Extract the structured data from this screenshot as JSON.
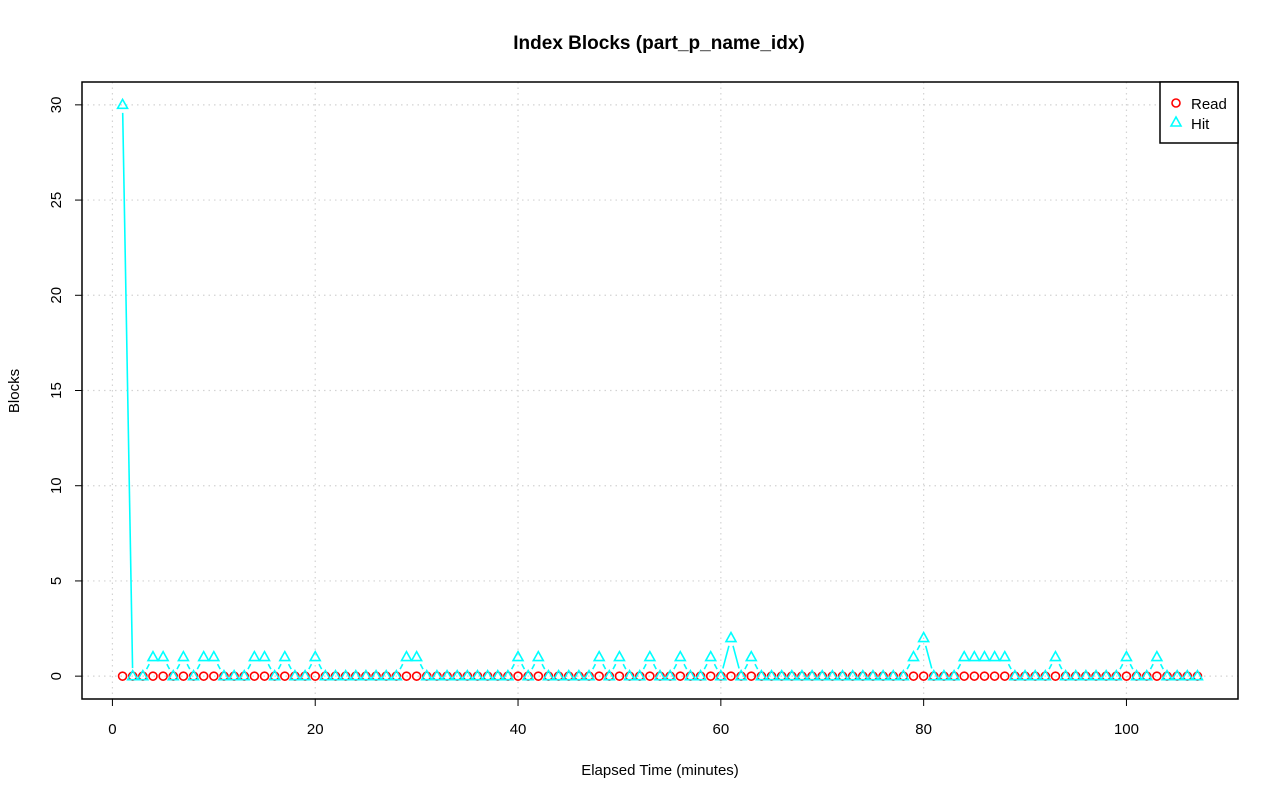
{
  "chart_data": {
    "type": "line",
    "title": "Index Blocks (part_p_name_idx)",
    "xlabel": "Elapsed Time (minutes)",
    "ylabel": "Blocks",
    "xlim": [
      -3,
      111
    ],
    "ylim": [
      -1.2,
      31.2
    ],
    "xticks": [
      0,
      20,
      40,
      60,
      80,
      100
    ],
    "yticks": [
      0,
      5,
      10,
      15,
      20,
      25,
      30
    ],
    "grid": true,
    "legend_position": "top-right",
    "x": [
      1,
      2,
      3,
      4,
      5,
      6,
      7,
      8,
      9,
      10,
      11,
      12,
      13,
      14,
      15,
      16,
      17,
      18,
      19,
      20,
      21,
      22,
      23,
      24,
      25,
      26,
      27,
      28,
      29,
      30,
      31,
      32,
      33,
      34,
      35,
      36,
      37,
      38,
      39,
      40,
      41,
      42,
      43,
      44,
      45,
      46,
      47,
      48,
      49,
      50,
      51,
      52,
      53,
      54,
      55,
      56,
      57,
      58,
      59,
      60,
      61,
      62,
      63,
      64,
      65,
      66,
      67,
      68,
      69,
      70,
      71,
      72,
      73,
      74,
      75,
      76,
      77,
      78,
      79,
      80,
      81,
      82,
      83,
      84,
      85,
      86,
      87,
      88,
      89,
      90,
      91,
      92,
      93,
      94,
      95,
      96,
      97,
      98,
      99,
      100,
      101,
      102,
      103,
      104,
      105,
      106,
      107
    ],
    "series": [
      {
        "name": "Read",
        "color": "#ff0000",
        "marker": "circle",
        "values": [
          0,
          0,
          0,
          0,
          0,
          0,
          0,
          0,
          0,
          0,
          0,
          0,
          0,
          0,
          0,
          0,
          0,
          0,
          0,
          0,
          0,
          0,
          0,
          0,
          0,
          0,
          0,
          0,
          0,
          0,
          0,
          0,
          0,
          0,
          0,
          0,
          0,
          0,
          0,
          0,
          0,
          0,
          0,
          0,
          0,
          0,
          0,
          0,
          0,
          0,
          0,
          0,
          0,
          0,
          0,
          0,
          0,
          0,
          0,
          0,
          0,
          0,
          0,
          0,
          0,
          0,
          0,
          0,
          0,
          0,
          0,
          0,
          0,
          0,
          0,
          0,
          0,
          0,
          0,
          0,
          0,
          0,
          0,
          0,
          0,
          0,
          0,
          0,
          0,
          0,
          0,
          0,
          0,
          0,
          0,
          0,
          0,
          0,
          0,
          0,
          0,
          0,
          0,
          0,
          0,
          0,
          0
        ]
      },
      {
        "name": "Hit",
        "color": "#00ffff",
        "marker": "triangle",
        "values": [
          30,
          0,
          0,
          1,
          1,
          0,
          1,
          0,
          1,
          1,
          0,
          0,
          0,
          1,
          1,
          0,
          1,
          0,
          0,
          1,
          0,
          0,
          0,
          0,
          0,
          0,
          0,
          0,
          1,
          1,
          0,
          0,
          0,
          0,
          0,
          0,
          0,
          0,
          0,
          1,
          0,
          1,
          0,
          0,
          0,
          0,
          0,
          1,
          0,
          1,
          0,
          0,
          1,
          0,
          0,
          1,
          0,
          0,
          1,
          0,
          2,
          0,
          1,
          0,
          0,
          0,
          0,
          0,
          0,
          0,
          0,
          0,
          0,
          0,
          0,
          0,
          0,
          0,
          1,
          2,
          0,
          0,
          0,
          1,
          1,
          1,
          1,
          1,
          0,
          0,
          0,
          0,
          1,
          0,
          0,
          0,
          0,
          0,
          0,
          1,
          0,
          0,
          1,
          0,
          0,
          0,
          0
        ]
      }
    ]
  }
}
